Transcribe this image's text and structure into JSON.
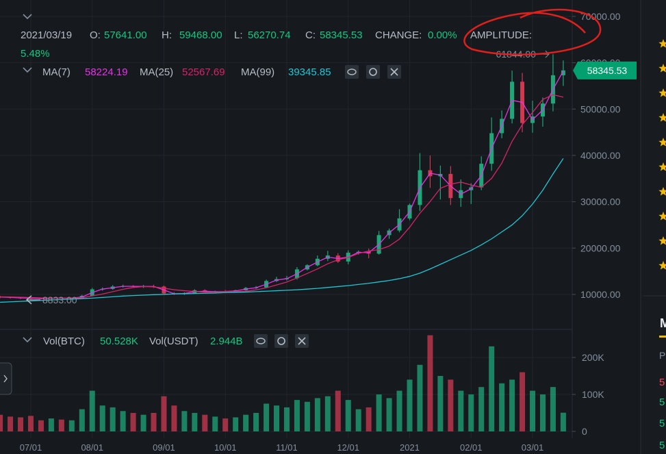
{
  "header": {
    "date": "2021/03/19",
    "open_label": "O:",
    "open": "57641.00",
    "high_label": "H:",
    "high": "59468.00",
    "low_label": "L:",
    "low": "56270.74",
    "close_label": "C:",
    "close": "58345.53",
    "change_label": "CHANGE:",
    "change": "0.00%",
    "amplitude_label": "AMPLITUDE:",
    "amplitude": "5.48%"
  },
  "sidebar": {
    "heading": "M",
    "sub": "P",
    "rows": [
      "5",
      "5",
      "5",
      "5"
    ]
  },
  "chart_data": {
    "type": "candlestick",
    "categories": [
      null,
      null,
      null,
      "07/01",
      null,
      null,
      null,
      null,
      null,
      "08/01",
      null,
      null,
      null,
      null,
      null,
      null,
      "09/01",
      null,
      null,
      null,
      null,
      null,
      "10/01",
      null,
      null,
      null,
      null,
      null,
      "11/01",
      null,
      null,
      null,
      null,
      null,
      "12/01",
      null,
      null,
      null,
      null,
      null,
      "2021",
      null,
      null,
      null,
      null,
      null,
      "02/01",
      null,
      null,
      null,
      null,
      null,
      "03/01",
      null,
      null,
      null
    ],
    "open": [
      9500,
      9400,
      9300,
      9200,
      9150,
      9100,
      9250,
      9200,
      9200,
      9700,
      11100,
      11200,
      11700,
      11800,
      11700,
      11750,
      11700,
      10200,
      10100,
      10300,
      10900,
      10500,
      10700,
      10600,
      10900,
      11400,
      11500,
      12900,
      13300,
      13500,
      15400,
      16300,
      17700,
      18400,
      17100,
      19000,
      19200,
      18800,
      22800,
      23800,
      26400,
      29300,
      36800,
      35500,
      36000,
      30800,
      32500,
      33100,
      38200,
      44800,
      47900,
      55900,
      47000,
      48400,
      51200,
      57300
    ],
    "high": [
      9700,
      9550,
      9450,
      9350,
      9300,
      9400,
      9400,
      9350,
      9900,
      11400,
      11500,
      12000,
      12100,
      12000,
      12050,
      12100,
      11900,
      10500,
      10450,
      11100,
      11100,
      10800,
      10950,
      11000,
      11600,
      11800,
      13200,
      13800,
      14000,
      15900,
      16500,
      18400,
      19400,
      18900,
      19500,
      19500,
      19900,
      23700,
      24200,
      28400,
      29600,
      40500,
      40000,
      37800,
      37700,
      34800,
      34000,
      39800,
      48200,
      49700,
      58300,
      57800,
      51800,
      52500,
      61844,
      60500
    ],
    "low": [
      9200,
      9100,
      9000,
      8833,
      8950,
      9000,
      9100,
      9000,
      9100,
      9600,
      10800,
      11000,
      11500,
      11500,
      11400,
      11400,
      10100,
      9900,
      9900,
      10200,
      10400,
      10300,
      10500,
      10400,
      10800,
      11200,
      11400,
      12700,
      13000,
      13200,
      15200,
      16100,
      17200,
      16800,
      16500,
      18600,
      17800,
      18600,
      22000,
      23400,
      26000,
      28000,
      33000,
      30500,
      29300,
      28900,
      29500,
      32500,
      36700,
      43700,
      46900,
      45000,
      44900,
      46200,
      49500,
      55000
    ],
    "close": [
      9400,
      9300,
      9200,
      9150,
      9100,
      9250,
      9200,
      9200,
      9700,
      11100,
      11200,
      11700,
      11800,
      11700,
      11750,
      11700,
      10200,
      10100,
      10300,
      10900,
      10500,
      10700,
      10600,
      10900,
      11400,
      11500,
      12900,
      13300,
      13500,
      15400,
      16300,
      17700,
      18400,
      17100,
      19000,
      19200,
      18800,
      22800,
      23800,
      26400,
      29300,
      36800,
      35500,
      36000,
      30800,
      32500,
      33100,
      38200,
      44800,
      47900,
      55900,
      47000,
      48400,
      51200,
      57300,
      58346
    ],
    "up_color": "#1fa77a",
    "down_color": "#cf3a52",
    "ylim": [
      2900,
      72360
    ],
    "yticks": [
      {
        "value": 10000,
        "label": "10000.00"
      },
      {
        "value": 20000,
        "label": "20000.00"
      },
      {
        "value": 30000,
        "label": "30000.00"
      },
      {
        "value": 40000,
        "label": "40000.00"
      },
      {
        "value": 50000,
        "label": "50000.00"
      },
      {
        "value": 60000,
        "label": "60000.00"
      },
      {
        "value": 70000,
        "label": "70000.00"
      }
    ],
    "grid": true,
    "series": [
      {
        "name": "MA(7)",
        "value_label": "58224.19",
        "color": "#e633e6",
        "values": [
          9450,
          9350,
          9250,
          9180,
          9120,
          9180,
          9220,
          9200,
          9450,
          10400,
          11150,
          11450,
          11750,
          11750,
          11720,
          11720,
          10950,
          10150,
          10200,
          10600,
          10700,
          10600,
          10650,
          10750,
          11150,
          11450,
          12200,
          13100,
          13400,
          14450,
          15850,
          17000,
          18050,
          17750,
          18050,
          19100,
          19000,
          20800,
          23300,
          25100,
          27850,
          33000,
          36150,
          35750,
          33400,
          31650,
          32800,
          35650,
          41500,
          46350,
          51900,
          51450,
          47700,
          49800,
          54250,
          58224
        ]
      },
      {
        "name": "MA(25)",
        "value_label": "52567.69",
        "color": "#d6246b",
        "values": [
          9500,
          9450,
          9400,
          9320,
          9250,
          9200,
          9190,
          9180,
          9300,
          9680,
          10090,
          10580,
          11100,
          11500,
          11690,
          11630,
          11350,
          11000,
          10800,
          10640,
          10500,
          10500,
          10620,
          10620,
          10680,
          10980,
          11420,
          12050,
          12680,
          13550,
          14530,
          15510,
          16620,
          17480,
          17980,
          18840,
          19380,
          19660,
          20430,
          21950,
          24500,
          27520,
          30040,
          32900,
          33780,
          34240,
          33620,
          33100,
          35040,
          38330,
          43040,
          46640,
          49280,
          52080,
          53110,
          52568
        ]
      },
      {
        "name": "MA(99)",
        "value_label": "39345.85",
        "color": "#1fc7d4",
        "values": [
          8300,
          8400,
          8500,
          8600,
          8700,
          8800,
          8900,
          9000,
          9100,
          9200,
          9350,
          9500,
          9650,
          9750,
          9850,
          9950,
          10000,
          10100,
          10150,
          10200,
          10250,
          10300,
          10400,
          10450,
          10500,
          10600,
          10700,
          10800,
          10900,
          11000,
          11150,
          11300,
          11500,
          11700,
          11900,
          12150,
          12400,
          12700,
          13000,
          13400,
          13900,
          14600,
          15500,
          16500,
          17500,
          18500,
          19500,
          20700,
          22000,
          23500,
          25000,
          27000,
          29500,
          32500,
          36000,
          39346
        ]
      }
    ],
    "last_price": {
      "value": 58345.53,
      "label": "58345.53",
      "color": "#02a06e"
    },
    "max_marker": {
      "value": 61844,
      "label": "61844.00"
    },
    "min_marker": {
      "value": 8833,
      "label": "8833.00"
    },
    "volume": {
      "name": "Vol(BTC)",
      "value_label": "50.528K",
      "name2": "Vol(USDT)",
      "value_label2": "2.944B",
      "values": [
        45000,
        40000,
        38000,
        42000,
        30000,
        35000,
        32000,
        30000,
        60000,
        110000,
        70000,
        65000,
        55000,
        50000,
        45000,
        50000,
        95000,
        70000,
        55000,
        50000,
        45000,
        40000,
        35000,
        38000,
        45000,
        50000,
        75000,
        70000,
        65000,
        85000,
        80000,
        90000,
        95000,
        110000,
        85000,
        60000,
        65000,
        100000,
        90000,
        110000,
        140000,
        180000,
        260000,
        150000,
        140000,
        110000,
        100000,
        120000,
        230000,
        130000,
        140000,
        160000,
        110000,
        100000,
        120000,
        50528
      ],
      "ylim": [
        0,
        268500
      ],
      "yticks": [
        0,
        {
          "value": 100000,
          "label": "100K"
        },
        {
          "value": 200000,
          "label": "200K"
        }
      ]
    }
  }
}
